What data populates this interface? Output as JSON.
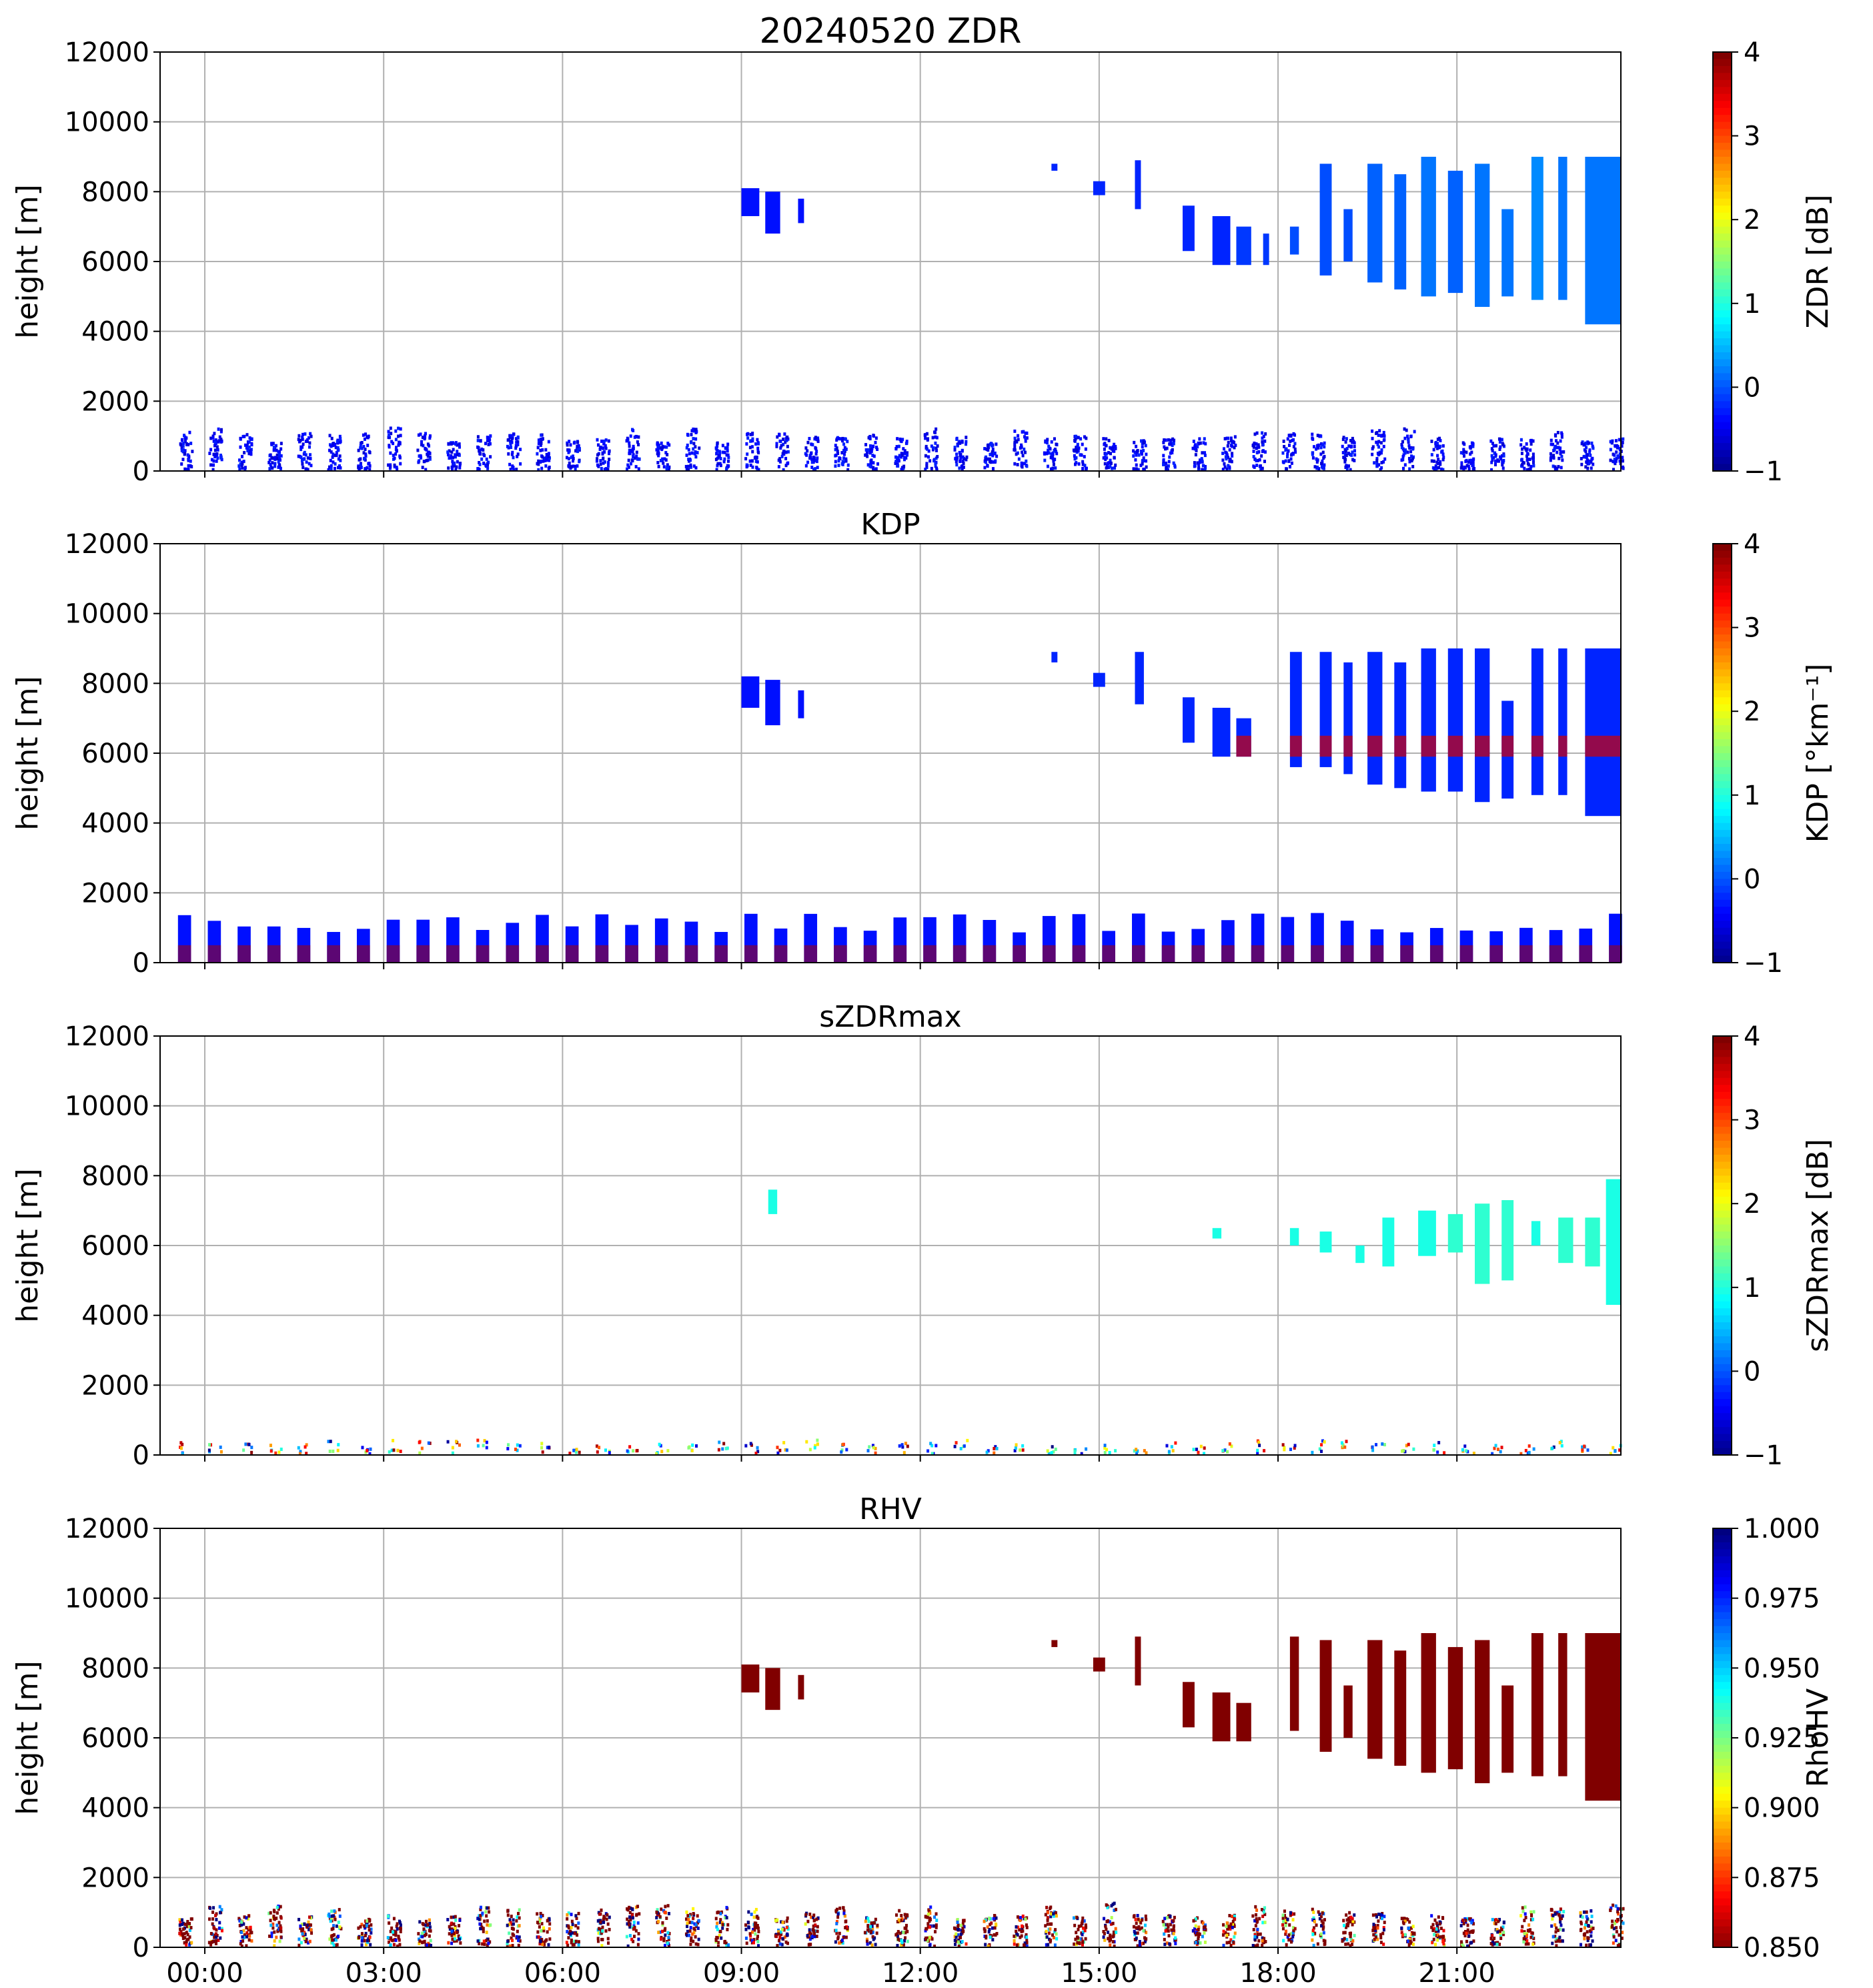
{
  "figure_title": "20240520 ZDR",
  "chart_data": [
    {
      "type": "heatmap",
      "title": "20240520 ZDR",
      "ylabel": "height [m]",
      "xlabel": "",
      "ylim": [
        0,
        12000
      ],
      "xlim": [
        -0.75,
        23.75
      ],
      "xticks": [
        0,
        3,
        6,
        9,
        12,
        15,
        18,
        21
      ],
      "xtick_labels": [
        "00:00",
        "03:00",
        "06:00",
        "09:00",
        "12:00",
        "15:00",
        "18:00",
        "21:00"
      ],
      "yticks": [
        0,
        2000,
        4000,
        6000,
        8000,
        10000,
        12000
      ],
      "ytick_labels": [
        "0",
        "2000",
        "4000",
        "6000",
        "8000",
        "10000",
        "12000"
      ],
      "grid": true,
      "colorbar": {
        "label": "ZDR [dB]",
        "range": [
          -1,
          4
        ],
        "ticks": [
          "4",
          "3",
          "2",
          "1",
          "0",
          "−1"
        ],
        "colormap": "jet"
      },
      "blocks": [
        {
          "x0": 9.0,
          "x1": 9.3,
          "y0": 7300,
          "y1": 8100,
          "v": -0.3
        },
        {
          "x0": 9.4,
          "x1": 9.65,
          "y0": 6800,
          "y1": 8000,
          "v": -0.3
        },
        {
          "x0": 9.95,
          "x1": 10.05,
          "y0": 7100,
          "y1": 7800,
          "v": -0.3
        },
        {
          "x0": 14.2,
          "x1": 14.3,
          "y0": 8600,
          "y1": 8800,
          "v": -0.2
        },
        {
          "x0": 14.9,
          "x1": 15.1,
          "y0": 7900,
          "y1": 8300,
          "v": -0.2
        },
        {
          "x0": 15.6,
          "x1": 15.7,
          "y0": 7500,
          "y1": 8900,
          "v": -0.2
        },
        {
          "x0": 16.4,
          "x1": 16.6,
          "y0": 6300,
          "y1": 7600,
          "v": -0.2
        },
        {
          "x0": 16.9,
          "x1": 17.2,
          "y0": 5900,
          "y1": 7300,
          "v": -0.2
        },
        {
          "x0": 17.3,
          "x1": 17.55,
          "y0": 5900,
          "y1": 7000,
          "v": -0.1
        },
        {
          "x0": 17.75,
          "x1": 17.85,
          "y0": 5900,
          "y1": 6800,
          "v": -0.1
        },
        {
          "x0": 18.2,
          "x1": 18.35,
          "y0": 6200,
          "y1": 7000,
          "v": 0.0
        },
        {
          "x0": 18.7,
          "x1": 18.9,
          "y0": 5600,
          "y1": 8800,
          "v": 0.0
        },
        {
          "x0": 19.1,
          "x1": 19.25,
          "y0": 6000,
          "y1": 7500,
          "v": 0.0
        },
        {
          "x0": 19.5,
          "x1": 19.75,
          "y0": 5400,
          "y1": 8800,
          "v": 0.1
        },
        {
          "x0": 19.95,
          "x1": 20.15,
          "y0": 5200,
          "y1": 8500,
          "v": 0.1
        },
        {
          "x0": 20.4,
          "x1": 20.65,
          "y0": 5000,
          "y1": 9000,
          "v": 0.2
        },
        {
          "x0": 20.85,
          "x1": 21.1,
          "y0": 5100,
          "y1": 8600,
          "v": 0.1
        },
        {
          "x0": 21.3,
          "x1": 21.55,
          "y0": 4700,
          "y1": 8800,
          "v": 0.2
        },
        {
          "x0": 21.75,
          "x1": 21.95,
          "y0": 5000,
          "y1": 7500,
          "v": 0.2
        },
        {
          "x0": 22.25,
          "x1": 22.45,
          "y0": 4900,
          "y1": 9000,
          "v": 0.3
        },
        {
          "x0": 22.7,
          "x1": 22.85,
          "y0": 4900,
          "y1": 9000,
          "v": 0.2
        },
        {
          "x0": 23.15,
          "x1": 23.75,
          "y0": 4200,
          "y1": 9000,
          "v": 0.2
        }
      ],
      "low_level": {
        "top": 1000,
        "v": -0.4,
        "speckle": true
      }
    },
    {
      "type": "heatmap",
      "title": "KDP",
      "ylabel": "height [m]",
      "xlabel": "",
      "ylim": [
        0,
        12000
      ],
      "xlim": [
        -0.75,
        23.75
      ],
      "xticks": [
        0,
        3,
        6,
        9,
        12,
        15,
        18,
        21
      ],
      "xtick_labels": [
        "00:00",
        "03:00",
        "06:00",
        "09:00",
        "12:00",
        "15:00",
        "18:00",
        "21:00"
      ],
      "yticks": [
        0,
        2000,
        4000,
        6000,
        8000,
        10000,
        12000
      ],
      "ytick_labels": [
        "0",
        "2000",
        "4000",
        "6000",
        "8000",
        "10000",
        "12000"
      ],
      "grid": true,
      "colorbar": {
        "label": "KDP [°km⁻¹]",
        "range": [
          -1,
          4
        ],
        "ticks": [
          "4",
          "3",
          "2",
          "1",
          "0",
          "−1"
        ],
        "colormap": "jet"
      },
      "blocks": [
        {
          "x0": 9.0,
          "x1": 9.3,
          "y0": 7300,
          "y1": 8200,
          "v": -0.3
        },
        {
          "x0": 9.4,
          "x1": 9.65,
          "y0": 6800,
          "y1": 8100,
          "v": -0.3
        },
        {
          "x0": 9.95,
          "x1": 10.05,
          "y0": 7000,
          "y1": 7800,
          "v": -0.3
        },
        {
          "x0": 14.2,
          "x1": 14.3,
          "y0": 8600,
          "y1": 8900,
          "v": -0.2
        },
        {
          "x0": 14.9,
          "x1": 15.1,
          "y0": 7900,
          "y1": 8300,
          "v": -0.2
        },
        {
          "x0": 15.6,
          "x1": 15.75,
          "y0": 7400,
          "y1": 8900,
          "v": -0.2
        },
        {
          "x0": 16.4,
          "x1": 16.6,
          "y0": 6300,
          "y1": 7600,
          "v": -0.2
        },
        {
          "x0": 16.9,
          "x1": 17.2,
          "y0": 5900,
          "y1": 7300,
          "v": -0.2
        },
        {
          "x0": 17.3,
          "x1": 17.55,
          "y0": 5900,
          "y1": 7000,
          "v": -0.2
        },
        {
          "x0": 18.2,
          "x1": 18.4,
          "y0": 5600,
          "y1": 8900,
          "v": -0.2
        },
        {
          "x0": 18.7,
          "x1": 18.9,
          "y0": 5600,
          "y1": 8900,
          "v": -0.2
        },
        {
          "x0": 19.1,
          "x1": 19.25,
          "y0": 5400,
          "y1": 8600,
          "v": -0.2
        },
        {
          "x0": 19.5,
          "x1": 19.75,
          "y0": 5100,
          "y1": 8900,
          "v": -0.2
        },
        {
          "x0": 19.95,
          "x1": 20.15,
          "y0": 5000,
          "y1": 8600,
          "v": -0.2
        },
        {
          "x0": 20.4,
          "x1": 20.65,
          "y0": 4900,
          "y1": 9000,
          "v": -0.2
        },
        {
          "x0": 20.85,
          "x1": 21.1,
          "y0": 4900,
          "y1": 9000,
          "v": -0.2
        },
        {
          "x0": 21.3,
          "x1": 21.55,
          "y0": 4600,
          "y1": 9000,
          "v": -0.2
        },
        {
          "x0": 21.75,
          "x1": 21.95,
          "y0": 4700,
          "y1": 7500,
          "v": -0.2
        },
        {
          "x0": 22.25,
          "x1": 22.45,
          "y0": 4800,
          "y1": 9000,
          "v": -0.2
        },
        {
          "x0": 22.7,
          "x1": 22.85,
          "y0": 4800,
          "y1": 9000,
          "v": -0.2
        },
        {
          "x0": 23.15,
          "x1": 23.75,
          "y0": 4200,
          "y1": 9000,
          "v": -0.2
        }
      ],
      "bright_band": {
        "from_hour": 17.3,
        "y": 6200,
        "v": 3.6
      },
      "low_level": {
        "top": 1150,
        "v": -0.3,
        "base_v": 3.8,
        "speckle": false
      }
    },
    {
      "type": "heatmap",
      "title": "sZDRmax",
      "ylabel": "height [m]",
      "xlabel": "",
      "ylim": [
        0,
        12000
      ],
      "xlim": [
        -0.75,
        23.75
      ],
      "xticks": [
        0,
        3,
        6,
        9,
        12,
        15,
        18,
        21
      ],
      "xtick_labels": [
        "00:00",
        "03:00",
        "06:00",
        "09:00",
        "12:00",
        "15:00",
        "18:00",
        "21:00"
      ],
      "yticks": [
        0,
        2000,
        4000,
        6000,
        8000,
        10000,
        12000
      ],
      "ytick_labels": [
        "0",
        "2000",
        "4000",
        "6000",
        "8000",
        "10000",
        "12000"
      ],
      "grid": true,
      "colorbar": {
        "label": "sZDRmax [dB]",
        "range": [
          -1,
          4
        ],
        "ticks": [
          "4",
          "3",
          "2",
          "1",
          "0",
          "−1"
        ],
        "colormap": "jet"
      },
      "blocks": [
        {
          "x0": 9.45,
          "x1": 9.6,
          "y0": 6900,
          "y1": 7600,
          "v": 1.0
        },
        {
          "x0": 16.9,
          "x1": 17.05,
          "y0": 6200,
          "y1": 6500,
          "v": 1.0
        },
        {
          "x0": 18.2,
          "x1": 18.35,
          "y0": 6000,
          "y1": 6500,
          "v": 1.0
        },
        {
          "x0": 18.7,
          "x1": 18.9,
          "y0": 5800,
          "y1": 6400,
          "v": 1.0
        },
        {
          "x0": 19.3,
          "x1": 19.45,
          "y0": 5500,
          "y1": 6000,
          "v": 1.0
        },
        {
          "x0": 19.75,
          "x1": 19.95,
          "y0": 5400,
          "y1": 6800,
          "v": 1.0
        },
        {
          "x0": 20.35,
          "x1": 20.65,
          "y0": 5700,
          "y1": 7000,
          "v": 1.0
        },
        {
          "x0": 20.85,
          "x1": 21.1,
          "y0": 5800,
          "y1": 6900,
          "v": 1.1
        },
        {
          "x0": 21.3,
          "x1": 21.55,
          "y0": 4900,
          "y1": 7200,
          "v": 1.1
        },
        {
          "x0": 21.75,
          "x1": 21.95,
          "y0": 5000,
          "y1": 7300,
          "v": 1.1
        },
        {
          "x0": 22.25,
          "x1": 22.4,
          "y0": 6000,
          "y1": 6700,
          "v": 1.0
        },
        {
          "x0": 22.7,
          "x1": 22.95,
          "y0": 5500,
          "y1": 6800,
          "v": 1.1
        },
        {
          "x0": 23.15,
          "x1": 23.4,
          "y0": 5400,
          "y1": 6800,
          "v": 1.1
        },
        {
          "x0": 23.5,
          "x1": 23.75,
          "y0": 4300,
          "y1": 7900,
          "v": 1.0
        }
      ],
      "low_level": {
        "top": 350,
        "v": 3.6,
        "speckle": true
      }
    },
    {
      "type": "heatmap",
      "title": "RHV",
      "ylabel": "height [m]",
      "xlabel": "",
      "ylim": [
        0,
        12000
      ],
      "xlim": [
        -0.75,
        23.75
      ],
      "xticks": [
        0,
        3,
        6,
        9,
        12,
        15,
        18,
        21
      ],
      "xtick_labels": [
        "00:00",
        "03:00",
        "06:00",
        "09:00",
        "12:00",
        "15:00",
        "18:00",
        "21:00"
      ],
      "yticks": [
        0,
        2000,
        4000,
        6000,
        8000,
        10000,
        12000
      ],
      "ytick_labels": [
        "0",
        "2000",
        "4000",
        "6000",
        "8000",
        "10000",
        "12000"
      ],
      "grid": true,
      "colorbar": {
        "label": "RhoHV",
        "range": [
          0.85,
          1.0
        ],
        "ticks": [
          "1.000",
          "0.975",
          "0.950",
          "0.925",
          "0.900",
          "0.875",
          "0.850"
        ],
        "colormap": "jet_r"
      },
      "blocks": [
        {
          "x0": 9.0,
          "x1": 9.3,
          "y0": 7300,
          "y1": 8100,
          "v": 0.85
        },
        {
          "x0": 9.4,
          "x1": 9.65,
          "y0": 6800,
          "y1": 8000,
          "v": 0.85
        },
        {
          "x0": 9.95,
          "x1": 10.05,
          "y0": 7100,
          "y1": 7800,
          "v": 0.85
        },
        {
          "x0": 14.2,
          "x1": 14.3,
          "y0": 8600,
          "y1": 8800,
          "v": 0.85
        },
        {
          "x0": 14.9,
          "x1": 15.1,
          "y0": 7900,
          "y1": 8300,
          "v": 0.85
        },
        {
          "x0": 15.6,
          "x1": 15.7,
          "y0": 7500,
          "y1": 8900,
          "v": 0.85
        },
        {
          "x0": 16.4,
          "x1": 16.6,
          "y0": 6300,
          "y1": 7600,
          "v": 0.85
        },
        {
          "x0": 16.9,
          "x1": 17.2,
          "y0": 5900,
          "y1": 7300,
          "v": 0.85
        },
        {
          "x0": 17.3,
          "x1": 17.55,
          "y0": 5900,
          "y1": 7000,
          "v": 0.85
        },
        {
          "x0": 18.2,
          "x1": 18.35,
          "y0": 6200,
          "y1": 8900,
          "v": 0.85
        },
        {
          "x0": 18.7,
          "x1": 18.9,
          "y0": 5600,
          "y1": 8800,
          "v": 0.85
        },
        {
          "x0": 19.1,
          "x1": 19.25,
          "y0": 6000,
          "y1": 7500,
          "v": 0.85
        },
        {
          "x0": 19.5,
          "x1": 19.75,
          "y0": 5400,
          "y1": 8800,
          "v": 0.85
        },
        {
          "x0": 19.95,
          "x1": 20.15,
          "y0": 5200,
          "y1": 8500,
          "v": 0.85
        },
        {
          "x0": 20.4,
          "x1": 20.65,
          "y0": 5000,
          "y1": 9000,
          "v": 0.85
        },
        {
          "x0": 20.85,
          "x1": 21.1,
          "y0": 5100,
          "y1": 8600,
          "v": 0.85
        },
        {
          "x0": 21.3,
          "x1": 21.55,
          "y0": 4700,
          "y1": 8800,
          "v": 0.85
        },
        {
          "x0": 21.75,
          "x1": 21.95,
          "y0": 5000,
          "y1": 7500,
          "v": 0.85
        },
        {
          "x0": 22.25,
          "x1": 22.45,
          "y0": 4900,
          "y1": 9000,
          "v": 0.85
        },
        {
          "x0": 22.7,
          "x1": 22.85,
          "y0": 4900,
          "y1": 9000,
          "v": 0.85
        },
        {
          "x0": 23.15,
          "x1": 23.75,
          "y0": 4200,
          "y1": 9000,
          "v": 0.85
        }
      ],
      "low_level": {
        "top": 1000,
        "v": 0.85,
        "speckle": true
      }
    }
  ],
  "colors": {
    "grid": "#b0b0b0",
    "axes": "#000000",
    "background": "#ffffff"
  }
}
